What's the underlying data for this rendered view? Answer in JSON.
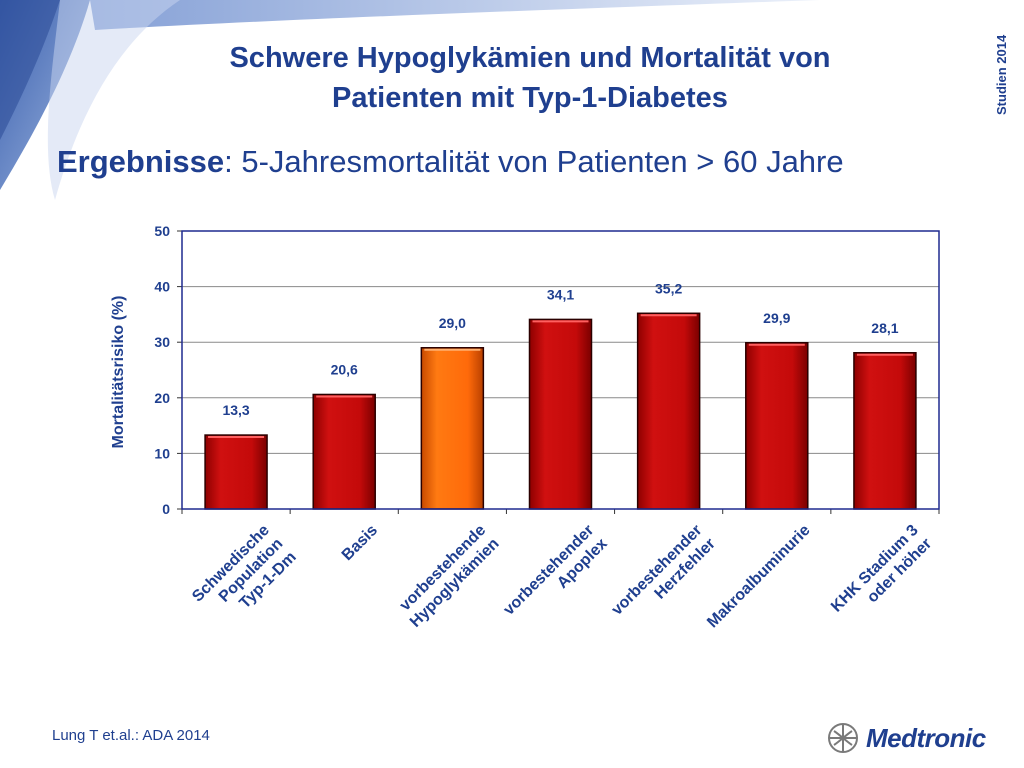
{
  "header": {
    "title_line1": "Schwere Hypoglykämien und Mortalität von",
    "title_line2": "Patienten mit Typ-1-Diabetes",
    "side_label": "Studien 2014"
  },
  "subtitle": {
    "strong": "Ergebnisse",
    "rest": ": 5-Jahresmortalität von Patienten > 60 Jahre"
  },
  "footer": {
    "reference": "Lung T et.al.: ADA 2014",
    "brand": "Medtronic"
  },
  "colors": {
    "title": "#1f3f8f",
    "bar_red": "#c40a0a",
    "bar_orange": "#ff6a0a",
    "plot_border": "#1f2a8f"
  },
  "chart_data": {
    "type": "bar",
    "title": "",
    "xlabel": "",
    "ylabel": "Mortalitätsrisiko (%)",
    "ylim": [
      0,
      50
    ],
    "yticks": [
      0,
      10,
      20,
      30,
      40,
      50
    ],
    "grid": true,
    "categories": [
      "Schwedische Population Typ-1-Dm",
      "Basis",
      "vorbestehende Hypoglykämien",
      "vorbestehender Apoplex",
      "vorbestehender Herzfehler",
      "Makroalbuminurie",
      "KHK Stadium 3 oder höher"
    ],
    "category_lines": [
      [
        "Schwedische",
        "Population",
        "Typ-1-Dm"
      ],
      [
        "Basis"
      ],
      [
        "vorbestehende",
        "Hypoglykämien"
      ],
      [
        "vorbestehender",
        "Apoplex"
      ],
      [
        "vorbestehender",
        "Herzfehler"
      ],
      [
        "Makroalbuminurie"
      ],
      [
        "KHK Stadium 3",
        "oder höher"
      ]
    ],
    "values": [
      13.3,
      20.6,
      29.0,
      34.1,
      35.2,
      29.9,
      28.1
    ],
    "value_labels": [
      "13,3",
      "20,6",
      "29,0",
      "34,1",
      "35,2",
      "29,9",
      "28,1"
    ],
    "highlight_index": 2
  }
}
